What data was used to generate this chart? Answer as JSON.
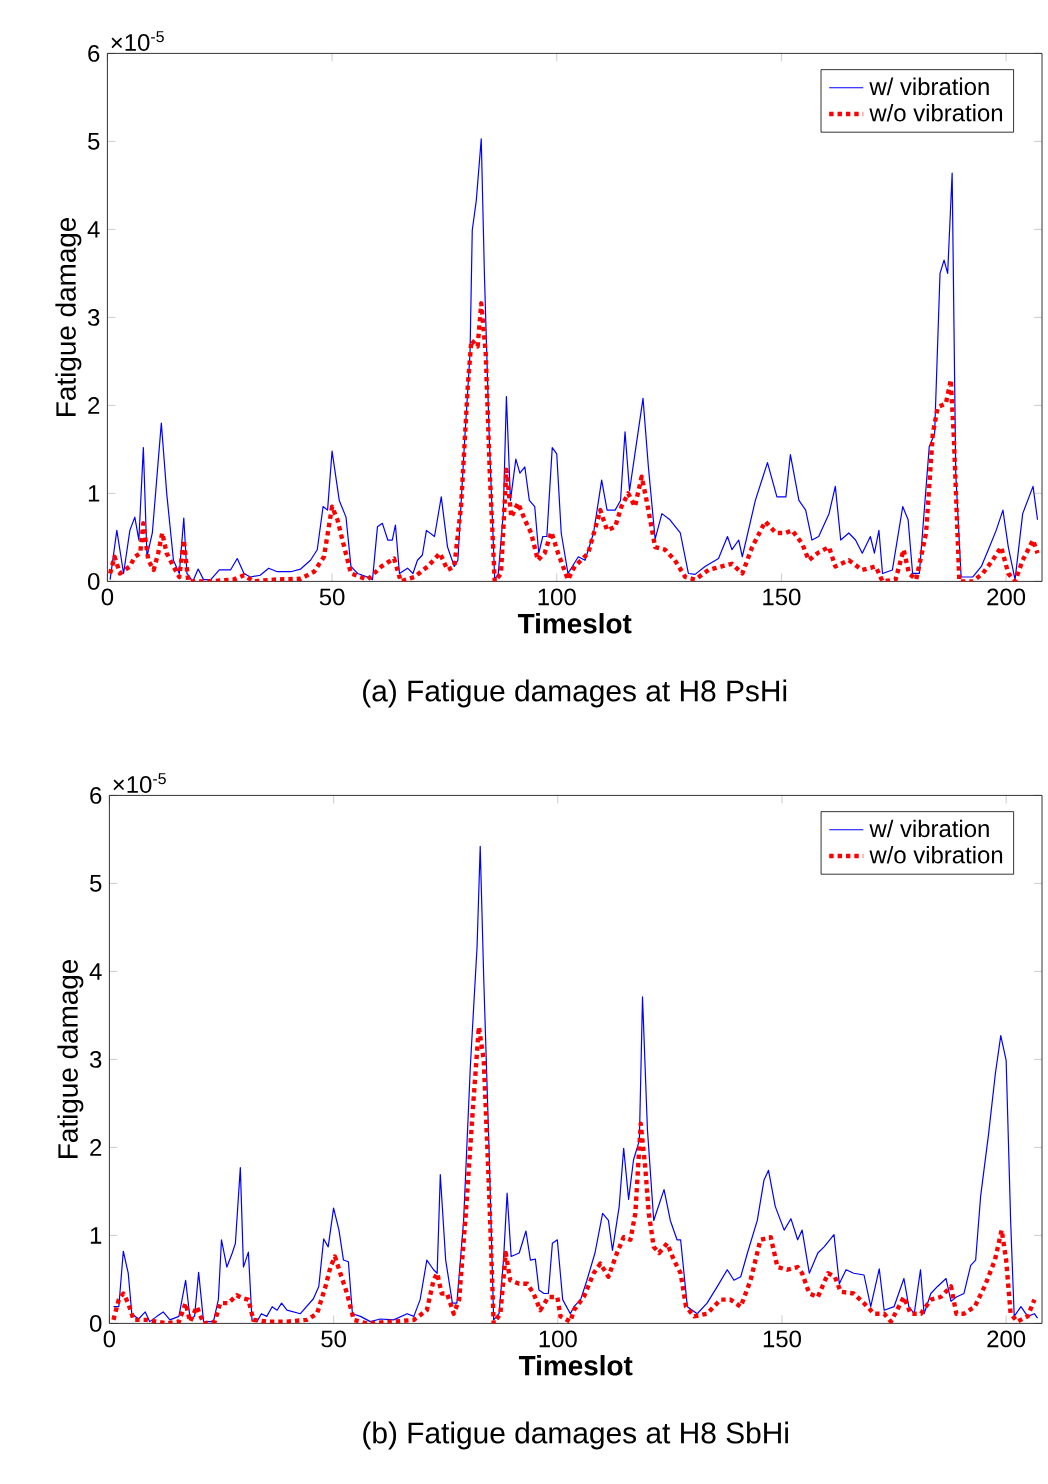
{
  "chart_data": [
    {
      "type": "line",
      "title": "(a) Fatigue damages at H8 PsHi",
      "xlabel": "Timeslot",
      "ylabel": "Fatigue damage",
      "annotations": [
        "×10$^{-5}$"
      ],
      "xlim": [
        0,
        208
      ],
      "ylim": [
        0,
        6
      ],
      "xticks": [
        0,
        50,
        100,
        150,
        200
      ],
      "yticks": [
        0,
        1,
        2,
        3,
        4,
        5,
        6
      ],
      "legend": "top right",
      "marker": "none",
      "grid": false,
      "series": [
        {
          "name": "w/ vibration",
          "color": "#0000ff",
          "line_style": "solid",
          "x": [
            0.6,
            2.1,
            3.6,
            5,
            6.1,
            7,
            8,
            8.8,
            10,
            12,
            13.2,
            14.7,
            16,
            17,
            17.7,
            19,
            20.2,
            21.4,
            23,
            24.9,
            27.4,
            28.9,
            30.4,
            31.8,
            34,
            35.9,
            37.8,
            40.8,
            43,
            45.2,
            46.7,
            48,
            49,
            50,
            51.6,
            53.1,
            54.2,
            55.7,
            57.9,
            59,
            60.1,
            61.2,
            62.4,
            63.4,
            64.1,
            65,
            66.8,
            68,
            69,
            70.1,
            71,
            72.8,
            74.3,
            75.7,
            77.2,
            78,
            79.5,
            80.7,
            81.2,
            82.1,
            83.2,
            83.9,
            85,
            86.2,
            87,
            88.1,
            88.8,
            89.7,
            90.9,
            91.8,
            92.9,
            93.9,
            95.1,
            96,
            96.9,
            97.8,
            99,
            100,
            101,
            102.5,
            104.8,
            106.3,
            108.2,
            110,
            111.2,
            113,
            114.2,
            115.2,
            116.2,
            117.4,
            119.2,
            120.4,
            121.9,
            123.4,
            125.2,
            127.5,
            129.3,
            130.8,
            133,
            136,
            138,
            139,
            140.5,
            141.3,
            144.2,
            146.9,
            149,
            151,
            152,
            153.9,
            155.4,
            156.8,
            158.3,
            160.6,
            162,
            163.2,
            165,
            166.5,
            168,
            169.8,
            170.7,
            171.7,
            172.5,
            174.7,
            177,
            178.2,
            179.2,
            180.7,
            182.9,
            184.1,
            185.3,
            186.2,
            187,
            188,
            188.8,
            190,
            192.6,
            194.5,
            196.3,
            197.8,
            199.3,
            200.5,
            202,
            203.7,
            206,
            207
          ],
          "values": [
            0.02,
            0.58,
            0.09,
            0.58,
            0.73,
            0.47,
            1.52,
            0.28,
            0.55,
            1.8,
            1.0,
            0.24,
            0.09,
            0.72,
            0.09,
            0,
            0.14,
            0.02,
            0.02,
            0.13,
            0.13,
            0.26,
            0.09,
            0.05,
            0.07,
            0.15,
            0.11,
            0.11,
            0.14,
            0.24,
            0.36,
            0.85,
            0.81,
            1.48,
            0.92,
            0.73,
            0.17,
            0.09,
            0.05,
            0.02,
            0.62,
            0.66,
            0.47,
            0.47,
            0.64,
            0.09,
            0.15,
            0.09,
            0.24,
            0.3,
            0.58,
            0.51,
            0.96,
            0.39,
            0.17,
            0.24,
            1.6,
            2.59,
            3.99,
            4.33,
            5.03,
            3.5,
            1.6,
            0.02,
            0.09,
            0.77,
            2.1,
            0.92,
            1.39,
            1.23,
            1.3,
            0.92,
            0.85,
            0.32,
            0.51,
            0.51,
            1.52,
            1.45,
            0.55,
            0.09,
            0.28,
            0.24,
            0.55,
            1.15,
            0.81,
            0.81,
            0.92,
            1.7,
            1.03,
            1.45,
            2.08,
            1.3,
            0.48,
            0.77,
            0.7,
            0.55,
            0.09,
            0.08,
            0.17,
            0.26,
            0.51,
            0.36,
            0.47,
            0.28,
            0.92,
            1.35,
            0.96,
            0.96,
            1.44,
            0.92,
            0.81,
            0.47,
            0.51,
            0.77,
            1.08,
            0.47,
            0.55,
            0.47,
            0.32,
            0.51,
            0.32,
            0.58,
            0.09,
            0.13,
            0.85,
            0.7,
            0.09,
            0.09,
            1.53,
            1.68,
            3.5,
            3.65,
            3.5,
            4.64,
            1.23,
            0.05,
            0.05,
            0.17,
            0.39,
            0.58,
            0.81,
            0.39,
            0.02,
            0.77,
            1.08,
            0.7
          ]
        },
        {
          "name": "w/o vibration",
          "color": "#ff0000",
          "line_style": "dotted",
          "x": [
            0.6,
            1.6,
            2.8,
            5,
            6.1,
            7.3,
            8,
            9.1,
            10.3,
            11.3,
            12.2,
            13.2,
            14.7,
            16,
            17,
            18,
            22.2,
            28.1,
            30.4,
            32.6,
            37,
            43,
            46,
            48.2,
            50,
            51.2,
            52.7,
            54.2,
            57.9,
            61,
            63.8,
            65.3,
            68.3,
            71.3,
            74,
            75.7,
            77.2,
            78.7,
            80.2,
            81,
            82.4,
            83.2,
            84.2,
            85.1,
            86.2,
            87.6,
            88.8,
            89.9,
            91.4,
            92.9,
            94.3,
            95.8,
            97.3,
            98.8,
            100.3,
            102.5,
            104,
            107,
            109.7,
            111.2,
            113,
            114.4,
            115.9,
            117.4,
            118.9,
            120,
            121.9,
            124.1,
            126.3,
            128.6,
            130.8,
            133.8,
            136.7,
            139,
            141.3,
            143.5,
            146.4,
            148.8,
            150.9,
            152.4,
            154.6,
            156.1,
            158.3,
            160.6,
            162,
            165,
            168,
            171,
            172.5,
            175.4,
            177.2,
            178.4,
            180,
            182.2,
            183.7,
            184.8,
            186.6,
            187.7,
            188.4,
            189.6,
            192.6,
            194.8,
            197,
            198.9,
            200.5,
            202,
            203.7,
            206,
            207
          ],
          "values": [
            0.09,
            0.28,
            0.09,
            0.17,
            0.28,
            0.32,
            0.66,
            0.24,
            0.13,
            0.32,
            0.55,
            0.32,
            0.17,
            0.05,
            0.47,
            0,
            0,
            0.02,
            0.07,
            0,
            0.02,
            0.03,
            0.11,
            0.28,
            0.85,
            0.7,
            0.39,
            0.09,
            0.02,
            0.17,
            0.26,
            0,
            0.05,
            0.17,
            0.32,
            0.13,
            0.17,
            0.85,
            2.21,
            2.74,
            2.67,
            3.16,
            2.59,
            1.23,
            0,
            0.09,
            1.27,
            0.73,
            0.89,
            0.7,
            0.55,
            0.24,
            0.32,
            0.56,
            0.32,
            0.02,
            0.17,
            0.32,
            0.81,
            0.58,
            0.62,
            0.85,
            1.0,
            0.85,
            1.19,
            0.92,
            0.39,
            0.36,
            0.24,
            0.05,
            0.02,
            0.13,
            0.17,
            0.2,
            0.09,
            0.39,
            0.68,
            0.55,
            0.55,
            0.58,
            0.43,
            0.24,
            0.33,
            0.39,
            0.17,
            0.24,
            0.13,
            0.17,
            0,
            0.02,
            0.36,
            0.09,
            0.02,
            0.55,
            1.68,
            1.98,
            2.02,
            2.29,
            1.61,
            0,
            0,
            0.09,
            0.24,
            0.39,
            0.09,
            0,
            0.24,
            0.47,
            0.32
          ]
        }
      ]
    },
    {
      "type": "line",
      "title": "(b) Fatigue damages at H8 SbHi",
      "xlabel": "Timeslot",
      "ylabel": "Fatigue damage",
      "annotations": [
        "×10$^{-5}$"
      ],
      "xlim": [
        0,
        208
      ],
      "ylim": [
        0,
        6
      ],
      "xticks": [
        0,
        50,
        100,
        150,
        200
      ],
      "yticks": [
        0,
        1,
        2,
        3,
        4,
        5,
        6
      ],
      "legend": "top right",
      "marker": "none",
      "grid": false,
      "series": [
        {
          "name": "w/ vibration",
          "color": "#0000ff",
          "line_style": "solid",
          "x": [
            0.9,
            2.1,
            3.1,
            4.2,
            5,
            6.5,
            8,
            9,
            10.6,
            12,
            13.5,
            15.5,
            17,
            18,
            19,
            19.9,
            21,
            23.2,
            24.3,
            25,
            26.2,
            27.4,
            28.1,
            29.2,
            29.9,
            31,
            31.8,
            32.9,
            33.9,
            35.1,
            36.3,
            37.4,
            38.4,
            39.6,
            42.6,
            45.5,
            46.7,
            47.8,
            48.8,
            50,
            51.2,
            52.2,
            53.3,
            54.2,
            56,
            58.2,
            60.4,
            63.4,
            66.4,
            67.9,
            69.3,
            70.8,
            72.3,
            73.1,
            73.8,
            75,
            76.5,
            77.5,
            79,
            80.5,
            82,
            82.7,
            83.5,
            84.7,
            85.7,
            86.9,
            87.9,
            88.7,
            89.6,
            91.4,
            92.9,
            93.9,
            95,
            95.8,
            96.9,
            97.9,
            98.8,
            99.9,
            101.1,
            102.8,
            103.6,
            105.1,
            106.5,
            108.3,
            110,
            111.3,
            112.2,
            113.7,
            114.7,
            115.8,
            116.9,
            118.2,
            118.9,
            120,
            121.4,
            123.7,
            125.1,
            126.6,
            127.4,
            128.9,
            131.1,
            133.3,
            135.6,
            137.8,
            139.3,
            140.8,
            142.3,
            144.5,
            146,
            147,
            148.5,
            150.5,
            152,
            153.5,
            154.5,
            156.1,
            158,
            159.4,
            161.6,
            162.8,
            164.3,
            166,
            168.3,
            169.8,
            171.7,
            172.8,
            175,
            177.2,
            178.3,
            179.5,
            180.9,
            181.7,
            183.2,
            184.7,
            186.6,
            187.7,
            188.9,
            190.6,
            192.1,
            193.2,
            194.3,
            196.1,
            197.6,
            198.8,
            200,
            201,
            201.8,
            203.3,
            204.8,
            206.3,
            207
          ],
          "values": [
            0.19,
            0.19,
            0.82,
            0.57,
            0.11,
            0.05,
            0.13,
            0.02,
            0.08,
            0.13,
            0.04,
            0.08,
            0.49,
            0.05,
            0.08,
            0.58,
            0.02,
            0.02,
            0.27,
            0.95,
            0.64,
            0.8,
            0.91,
            1.77,
            0.64,
            0.81,
            0.04,
            0.02,
            0.11,
            0.08,
            0.19,
            0.15,
            0.23,
            0.15,
            0.11,
            0.28,
            0.42,
            0.96,
            0.87,
            1.31,
            1.06,
            0.72,
            0.7,
            0.11,
            0.08,
            0.02,
            0.05,
            0.04,
            0.11,
            0.08,
            0.27,
            0.72,
            0.61,
            0.57,
            1.69,
            0.72,
            0.23,
            0.23,
            1.17,
            2.92,
            4.28,
            5.42,
            3.9,
            1.93,
            0.04,
            0.11,
            0.72,
            1.48,
            0.76,
            0.8,
            1.05,
            0.72,
            0.73,
            0.38,
            0.34,
            0.34,
            0.91,
            0.95,
            0.27,
            0.11,
            0.19,
            0.27,
            0.49,
            0.8,
            1.25,
            1.17,
            0.83,
            1.33,
            1.99,
            1.41,
            1.86,
            2.08,
            3.71,
            2.2,
            1.17,
            1.52,
            1.17,
            0.95,
            0.95,
            0.19,
            0.11,
            0.23,
            0.42,
            0.61,
            0.49,
            0.53,
            0.8,
            1.17,
            1.63,
            1.74,
            1.33,
            1.06,
            1.19,
            0.95,
            1.06,
            0.57,
            0.8,
            0.87,
            1.01,
            0.45,
            0.61,
            0.57,
            0.55,
            0.19,
            0.62,
            0.15,
            0.19,
            0.51,
            0.19,
            0.11,
            0.61,
            0.11,
            0.34,
            0.42,
            0.51,
            0.25,
            0.3,
            0.34,
            0.66,
            0.72,
            1.44,
            2.16,
            2.84,
            3.27,
            2.99,
            1.17,
            0.08,
            0.19,
            0.08,
            0.11,
            0.06
          ]
        },
        {
          "name": "w/o vibration",
          "color": "#ff0000",
          "line_style": "dotted",
          "x": [
            0.9,
            2.1,
            3.1,
            4.2,
            5.4,
            8.3,
            12.8,
            15.5,
            17,
            18,
            19.5,
            21,
            23.5,
            24.7,
            26.5,
            28.4,
            29.5,
            31,
            32.1,
            35.1,
            39.6,
            44,
            46.3,
            48.2,
            49.3,
            50.3,
            51.5,
            53,
            54.5,
            57.4,
            63.4,
            67.9,
            70.8,
            72.3,
            73.1,
            74.1,
            75.3,
            76.8,
            78,
            79.5,
            81,
            82.4,
            83.5,
            84.7,
            85.7,
            87.2,
            88.4,
            89.4,
            91.4,
            93.2,
            94.6,
            96.1,
            97.9,
            99.9,
            100.6,
            102.8,
            103.6,
            105.8,
            108,
            109.5,
            111.3,
            113.2,
            114.7,
            116.2,
            117.3,
            118.5,
            119.5,
            120.3,
            121.4,
            122.6,
            124.4,
            125.9,
            127.4,
            128.6,
            130.4,
            133.3,
            136.3,
            138.5,
            140.8,
            143,
            145.2,
            147.5,
            149,
            151.2,
            153.5,
            154.5,
            156.1,
            158,
            160.3,
            161.8,
            163.1,
            166,
            168.3,
            170.5,
            172.8,
            174.3,
            177.2,
            178.7,
            181,
            183.2,
            185.4,
            187.7,
            188.9,
            190.6,
            193,
            195.2,
            197.5,
            199,
            200,
            201,
            202.5,
            204.8,
            206.3
          ],
          "values": [
            0.04,
            0.27,
            0.34,
            0.23,
            0.04,
            0.04,
            0,
            0.02,
            0.23,
            0.02,
            0.19,
            0,
            0.02,
            0.23,
            0.23,
            0.32,
            0.29,
            0.27,
            0.04,
            0.02,
            0.02,
            0.04,
            0.11,
            0.42,
            0.64,
            0.76,
            0.57,
            0.34,
            0.04,
            0,
            0.02,
            0.04,
            0.15,
            0.49,
            0.57,
            0.34,
            0.34,
            0.11,
            0.27,
            1.25,
            2.39,
            3.37,
            2.99,
            1.48,
            0,
            0.11,
            0.8,
            0.49,
            0.45,
            0.45,
            0.34,
            0.15,
            0.3,
            0.3,
            0.08,
            0.02,
            0.15,
            0.3,
            0.57,
            0.68,
            0.53,
            0.8,
            0.98,
            0.95,
            1.25,
            2.27,
            1.78,
            1.25,
            0.87,
            0.8,
            0.91,
            0.72,
            0.57,
            0.19,
            0.08,
            0.11,
            0.27,
            0.27,
            0.19,
            0.49,
            0.95,
            0.98,
            0.64,
            0.61,
            0.64,
            0.57,
            0.34,
            0.3,
            0.57,
            0.53,
            0.36,
            0.34,
            0.23,
            0.11,
            0.11,
            0.02,
            0.3,
            0.11,
            0.11,
            0.27,
            0.3,
            0.42,
            0.11,
            0.11,
            0.19,
            0.42,
            0.72,
            1.06,
            0.72,
            0.11,
            0.02,
            0.08,
            0.27
          ]
        }
      ]
    }
  ]
}
